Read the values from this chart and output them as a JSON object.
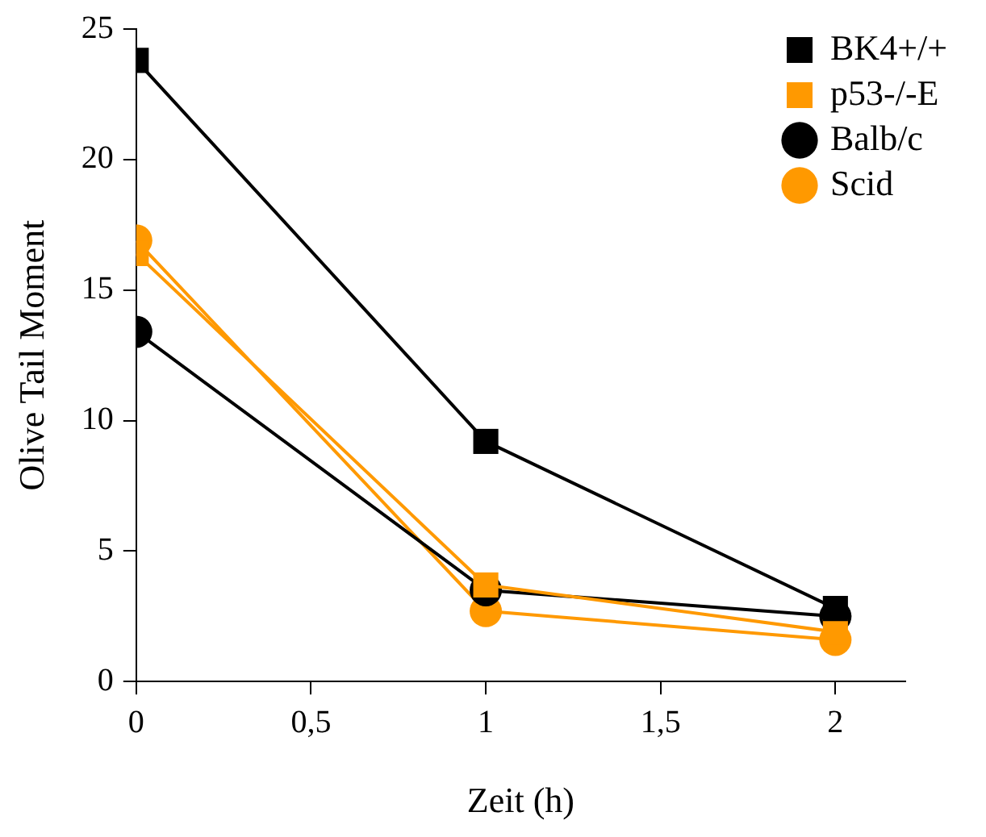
{
  "chart_data": {
    "type": "line",
    "xlabel": "Zeit (h)",
    "ylabel": "Olive Tail Moment",
    "x": [
      0,
      1,
      2
    ],
    "series": [
      {
        "name": "BK4+/+",
        "color": "#000000",
        "marker": "square",
        "values": [
          23.8,
          9.2,
          2.8
        ]
      },
      {
        "name": "p53-/-E",
        "color": "#ff9900",
        "marker": "square",
        "values": [
          16.4,
          3.7,
          1.9
        ]
      },
      {
        "name": "Balb/c",
        "color": "#000000",
        "marker": "circle",
        "values": [
          13.4,
          3.5,
          2.5
        ]
      },
      {
        "name": "Scid",
        "color": "#ff9900",
        "marker": "circle",
        "values": [
          16.9,
          2.7,
          1.6
        ]
      }
    ],
    "xlim": [
      0,
      2.2
    ],
    "xticks": [
      0,
      {
        "value": 0.5,
        "label": "0,5"
      },
      1,
      {
        "value": 1.5,
        "label": "1,5"
      },
      2
    ],
    "ylim": [
      0,
      25
    ],
    "yticks": [
      0,
      5,
      10,
      15,
      20,
      25
    ],
    "grid": false,
    "legend": "top right",
    "line_style": "solid"
  }
}
